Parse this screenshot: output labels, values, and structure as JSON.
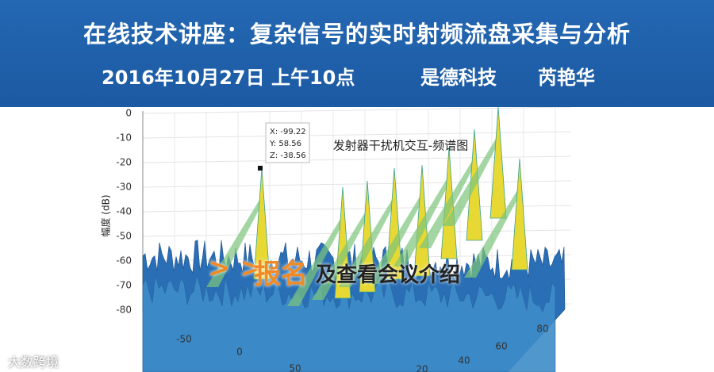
{
  "header": {
    "title": "在线技术讲座：复杂信号的实时射频流盘采集与分析",
    "subtitle": [
      "2016年10月27日 上午10点",
      "是德科技",
      "芮艳华"
    ]
  },
  "plot": {
    "title": "发射器干扰机交互-频谱图",
    "z_axis_label": "幅度 (dB)",
    "z_ticks": [
      "0",
      "-10",
      "-20",
      "-30",
      "-40",
      "-50",
      "-60",
      "-70",
      "-80"
    ],
    "x_ticks": [
      "-50",
      "0",
      "50"
    ],
    "y_ticks": [
      "20",
      "40",
      "60",
      "80"
    ],
    "datatip": [
      "X: -99.22",
      "Y: 58.56",
      "Z: -38.56"
    ]
  },
  "cta": {
    "arrows": "> >",
    "highlight": "报名",
    "rest": "及查看会议介绍"
  },
  "watermark": "大数跨境"
}
